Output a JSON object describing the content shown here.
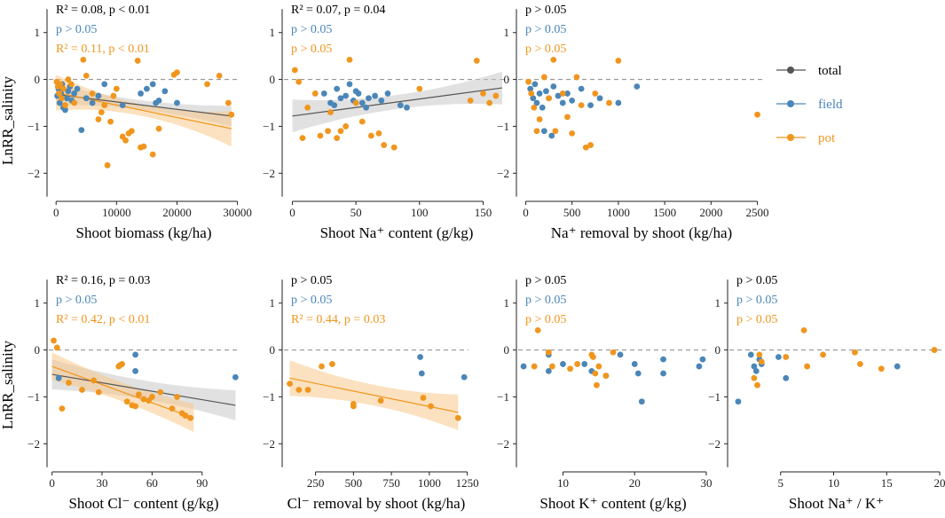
{
  "colors": {
    "total": "#555555",
    "field": "#4a86b8",
    "pot": "#f0961e",
    "total_band": "#c8c8c8",
    "pot_band": "#f7c98a"
  },
  "legend": {
    "entries": [
      {
        "key": "total",
        "label": "total"
      },
      {
        "key": "field",
        "label": "field"
      },
      {
        "key": "pot",
        "label": "pot"
      }
    ]
  },
  "chart_data": [
    {
      "type": "scatter",
      "title": "",
      "xlabel": "Shoot biomass (kg/ha)",
      "ylabel": "LnRR_salinity",
      "xlim": [
        -1500,
        30500
      ],
      "ylim": [
        -2.6,
        1.6
      ],
      "xticks": [
        0,
        10000,
        20000,
        30000
      ],
      "yticks": [
        -2,
        -1,
        0,
        1
      ],
      "annotations": [
        {
          "series": "total",
          "text": "R² = 0.08, p < 0.01"
        },
        {
          "series": "field",
          "text": "p > 0.05"
        },
        {
          "series": "pot",
          "text": "R² = 0.11, p < 0.01"
        }
      ],
      "fits": [
        {
          "series": "total",
          "x": [
            0,
            29000
          ],
          "y": [
            -0.32,
            -0.78
          ],
          "band": [
            0.1,
            0.22
          ]
        },
        {
          "series": "pot",
          "x": [
            0,
            29000
          ],
          "y": [
            -0.28,
            -1.05
          ],
          "band": [
            0.12,
            0.38
          ]
        }
      ],
      "series": [
        {
          "name": "field",
          "x": [
            200,
            400,
            600,
            800,
            1000,
            1200,
            1500,
            1800,
            2000,
            2300,
            2600,
            3000,
            3500,
            4200,
            5000,
            6000,
            7000,
            8000,
            11000,
            14000,
            15000,
            16000,
            16500,
            17000,
            18000,
            20000
          ],
          "y": [
            -0.35,
            -0.2,
            -0.5,
            -0.3,
            -0.1,
            -0.6,
            -0.65,
            -0.4,
            -0.25,
            -0.15,
            -0.45,
            -0.3,
            -0.2,
            -1.08,
            -0.4,
            -0.5,
            -0.35,
            -0.1,
            -0.55,
            -0.3,
            -0.2,
            -0.1,
            -0.5,
            -0.45,
            -0.25,
            -0.5
          ]
        },
        {
          "name": "pot",
          "x": [
            100,
            300,
            500,
            700,
            900,
            1200,
            1500,
            2000,
            2500,
            3000,
            4500,
            5000,
            6000,
            7000,
            7500,
            8000,
            8500,
            9000,
            9500,
            10000,
            11000,
            11500,
            12000,
            12500,
            13500,
            14000,
            14500,
            16000,
            17000,
            19500,
            20000,
            25000,
            27000,
            28500,
            29000
          ],
          "y": [
            -0.05,
            -0.15,
            -0.3,
            -0.1,
            -0.4,
            -0.2,
            -0.55,
            0.0,
            -0.1,
            -0.5,
            0.42,
            0.08,
            -0.3,
            -0.85,
            -0.7,
            -0.55,
            -1.83,
            -0.9,
            -0.35,
            -0.2,
            -1.22,
            -1.3,
            -1.15,
            -1.1,
            0.4,
            -1.45,
            -1.43,
            -1.6,
            -1.05,
            0.1,
            0.15,
            -0.1,
            0.08,
            -0.5,
            -0.75
          ]
        }
      ]
    },
    {
      "type": "scatter",
      "title": "",
      "xlabel": "Shoot Na⁺ content (g/kg)",
      "ylabel": "",
      "xlim": [
        -8,
        172
      ],
      "ylim": [
        -2.6,
        1.6
      ],
      "xticks": [
        0,
        50,
        100,
        150
      ],
      "yticks": [
        -2,
        -1,
        0,
        1
      ],
      "annotations": [
        {
          "series": "total",
          "text": "R² = 0.07, p = 0.04"
        },
        {
          "series": "field",
          "text": "p > 0.05"
        },
        {
          "series": "pot",
          "text": "p > 0.05"
        }
      ],
      "fits": [
        {
          "series": "total",
          "x": [
            0,
            165
          ],
          "y": [
            -0.78,
            -0.18
          ],
          "band": [
            0.15,
            0.35
          ]
        }
      ],
      "series": [
        {
          "name": "field",
          "x": [
            25,
            30,
            33,
            35,
            38,
            42,
            45,
            48,
            50,
            52,
            55,
            58,
            60,
            65,
            70,
            75,
            85,
            90
          ],
          "y": [
            -0.3,
            -0.5,
            -0.55,
            -0.2,
            -0.4,
            -0.35,
            -0.1,
            -0.45,
            -0.25,
            -0.3,
            -0.5,
            -0.6,
            -0.4,
            -0.35,
            -0.45,
            -0.3,
            -0.55,
            -0.6
          ]
        },
        {
          "name": "pot",
          "x": [
            2,
            5,
            8,
            12,
            18,
            22,
            28,
            30,
            35,
            38,
            42,
            45,
            50,
            55,
            62,
            68,
            72,
            80,
            100,
            140,
            145,
            150,
            155,
            160
          ],
          "y": [
            0.2,
            -0.05,
            -1.25,
            -0.6,
            -0.3,
            -1.2,
            -1.1,
            -0.7,
            -1.25,
            -1.1,
            -1.0,
            0.42,
            -0.5,
            -0.9,
            -1.2,
            -1.15,
            -1.4,
            -1.45,
            -0.2,
            -0.45,
            0.4,
            -0.3,
            -0.5,
            -0.35
          ]
        }
      ]
    },
    {
      "type": "scatter",
      "title": "",
      "xlabel": "Na⁺ removal by shoot (kg/ha)",
      "ylabel": "",
      "xlim": [
        -100,
        2600
      ],
      "ylim": [
        -2.6,
        1.6
      ],
      "xticks": [
        0,
        500,
        1000,
        1500,
        2000,
        2500
      ],
      "yticks": [
        -2,
        -1,
        0,
        1
      ],
      "annotations": [
        {
          "series": "total",
          "text": "p > 0.05"
        },
        {
          "series": "field",
          "text": "p > 0.05"
        },
        {
          "series": "pot",
          "text": "p > 0.05"
        }
      ],
      "fits": [],
      "series": [
        {
          "name": "field",
          "x": [
            50,
            80,
            100,
            120,
            150,
            180,
            200,
            220,
            250,
            280,
            300,
            350,
            400,
            450,
            500,
            600,
            700,
            800,
            1000,
            1200
          ],
          "y": [
            -0.2,
            -0.4,
            -0.1,
            -0.5,
            -0.3,
            -0.6,
            -1.1,
            -0.25,
            -0.4,
            -1.2,
            -0.15,
            -0.35,
            -0.5,
            -0.3,
            -0.45,
            -0.2,
            -0.55,
            -0.4,
            -0.5,
            -0.15
          ]
        },
        {
          "name": "pot",
          "x": [
            30,
            60,
            90,
            120,
            150,
            200,
            250,
            300,
            320,
            400,
            450,
            500,
            550,
            600,
            650,
            700,
            750,
            900,
            1000,
            2500
          ],
          "y": [
            -0.05,
            -0.3,
            -0.6,
            -1.1,
            -0.85,
            0.05,
            -0.4,
            0.42,
            -1.1,
            -0.3,
            -0.8,
            -1.15,
            0.05,
            -0.55,
            -1.45,
            -1.4,
            -0.3,
            -0.5,
            0.4,
            -0.75
          ]
        }
      ]
    },
    {
      "type": "scatter",
      "title": "",
      "xlabel": "Shoot Cl⁻ content (g/kg)",
      "ylabel": "LnRR_salinity",
      "xlim": [
        -3,
        113
      ],
      "ylim": [
        -2.6,
        1.6
      ],
      "xticks": [
        0,
        30,
        60,
        90
      ],
      "yticks": [
        -2,
        -1,
        0,
        1
      ],
      "annotations": [
        {
          "series": "total",
          "text": "R² = 0.16, p = 0.03"
        },
        {
          "series": "field",
          "text": "p > 0.05"
        },
        {
          "series": "pot",
          "text": "R² = 0.42, p < 0.01"
        }
      ],
      "fits": [
        {
          "series": "total",
          "x": [
            0,
            110
          ],
          "y": [
            -0.52,
            -1.18
          ],
          "band": [
            0.2,
            0.32
          ]
        },
        {
          "series": "pot",
          "x": [
            0,
            85
          ],
          "y": [
            -0.35,
            -1.45
          ],
          "band": [
            0.2,
            0.3
          ]
        }
      ],
      "series": [
        {
          "name": "field",
          "x": [
            4,
            50,
            50,
            110
          ],
          "y": [
            -0.6,
            -0.1,
            -0.45,
            -0.58
          ]
        },
        {
          "name": "pot",
          "x": [
            1,
            3,
            6,
            10,
            18,
            25,
            28,
            40,
            41,
            42,
            45,
            48,
            50,
            52,
            55,
            58,
            60,
            65,
            72,
            75,
            78,
            80,
            83
          ],
          "y": [
            0.2,
            0.05,
            -1.25,
            -0.7,
            -0.85,
            -0.65,
            -0.9,
            -0.35,
            -0.32,
            -0.3,
            -1.1,
            -1.18,
            -1.2,
            -0.95,
            -1.05,
            -1.08,
            -1.0,
            -0.9,
            -1.25,
            -1.0,
            -1.35,
            -1.4,
            -1.45
          ]
        }
      ]
    },
    {
      "type": "scatter",
      "title": "",
      "xlabel": "Cl⁻ removal by shoot (kg/ha)",
      "ylabel": "",
      "xlim": [
        30,
        1270
      ],
      "ylim": [
        -2.6,
        1.6
      ],
      "xticks": [
        250,
        500,
        750,
        1000,
        1250
      ],
      "yticks": [
        -2,
        -1,
        0,
        1
      ],
      "annotations": [
        {
          "series": "total",
          "text": "p > 0.05"
        },
        {
          "series": "field",
          "text": "p > 0.05"
        },
        {
          "series": "pot",
          "text": "R² = 0.44, p = 0.03"
        }
      ],
      "fits": [
        {
          "series": "pot",
          "x": [
            80,
            1190
          ],
          "y": [
            -0.6,
            -1.33
          ],
          "band": [
            0.22,
            0.38
          ]
        }
      ],
      "series": [
        {
          "name": "field",
          "x": [
            940,
            950,
            1230
          ],
          "y": [
            -0.15,
            -0.5,
            -0.58
          ]
        },
        {
          "name": "pot",
          "x": [
            80,
            140,
            200,
            290,
            360,
            500,
            500,
            680,
            960,
            1010,
            1190
          ],
          "y": [
            -0.72,
            -0.85,
            -0.85,
            -0.35,
            -0.3,
            -1.15,
            -1.2,
            -1.08,
            -1.02,
            -1.2,
            -1.45
          ]
        }
      ]
    },
    {
      "type": "scatter",
      "title": "",
      "xlabel": "Shoot K⁺ content (g/kg)",
      "ylabel": "",
      "xlim": [
        3.5,
        30.5
      ],
      "ylim": [
        -2.6,
        1.6
      ],
      "xticks": [
        10,
        20,
        30
      ],
      "yticks": [
        -2,
        -1,
        0,
        1
      ],
      "annotations": [
        {
          "series": "total",
          "text": "p > 0.05"
        },
        {
          "series": "field",
          "text": "p > 0.05"
        },
        {
          "series": "pot",
          "text": "p > 0.05"
        }
      ],
      "fits": [],
      "series": [
        {
          "name": "field",
          "x": [
            4.5,
            8,
            8,
            10,
            13,
            14,
            16,
            18,
            20,
            20.5,
            21,
            24,
            24,
            29,
            29.5
          ],
          "y": [
            -0.35,
            -0.1,
            -0.45,
            -0.3,
            -0.3,
            -0.45,
            -0.55,
            -0.1,
            -0.3,
            -0.5,
            -1.1,
            -0.2,
            -0.5,
            -0.35,
            -0.2
          ]
        },
        {
          "name": "pot",
          "x": [
            6,
            6.5,
            8,
            8.5,
            11,
            12,
            14,
            14.2,
            14.5,
            14.7,
            15,
            16,
            17
          ],
          "y": [
            -0.35,
            0.42,
            -0.05,
            -0.35,
            -0.4,
            -0.3,
            -0.1,
            -0.15,
            -0.5,
            -0.75,
            -0.35,
            -0.55,
            -0.05
          ]
        }
      ]
    },
    {
      "type": "scatter",
      "title": "",
      "xlabel": "Shoot Na⁺ / K⁺",
      "ylabel": "",
      "xlim": [
        0,
        20.5
      ],
      "ylim": [
        -2.6,
        1.6
      ],
      "xticks": [
        5,
        10,
        15,
        20
      ],
      "yticks": [
        -2,
        -1,
        0,
        1
      ],
      "annotations": [
        {
          "series": "total",
          "text": "p > 0.05"
        },
        {
          "series": "field",
          "text": "p > 0.05"
        },
        {
          "series": "pot",
          "text": "p > 0.05"
        }
      ],
      "fits": [],
      "series": [
        {
          "name": "field",
          "x": [
            1,
            2.2,
            2.5,
            2.7,
            3.0,
            3.2,
            4.8,
            5.5,
            16
          ],
          "y": [
            -1.1,
            -0.1,
            -0.35,
            -0.45,
            -0.2,
            -0.3,
            -0.15,
            -0.6,
            -0.35
          ]
        },
        {
          "name": "pot",
          "x": [
            2.5,
            2.8,
            3.0,
            3.2,
            5.5,
            7.2,
            7.5,
            9.0,
            12.0,
            12.5,
            14.5,
            19.5
          ],
          "y": [
            -0.6,
            -0.75,
            -0.1,
            -0.25,
            -0.15,
            0.42,
            -0.35,
            -0.1,
            -0.05,
            -0.3,
            -0.4,
            0.0
          ]
        }
      ]
    }
  ]
}
